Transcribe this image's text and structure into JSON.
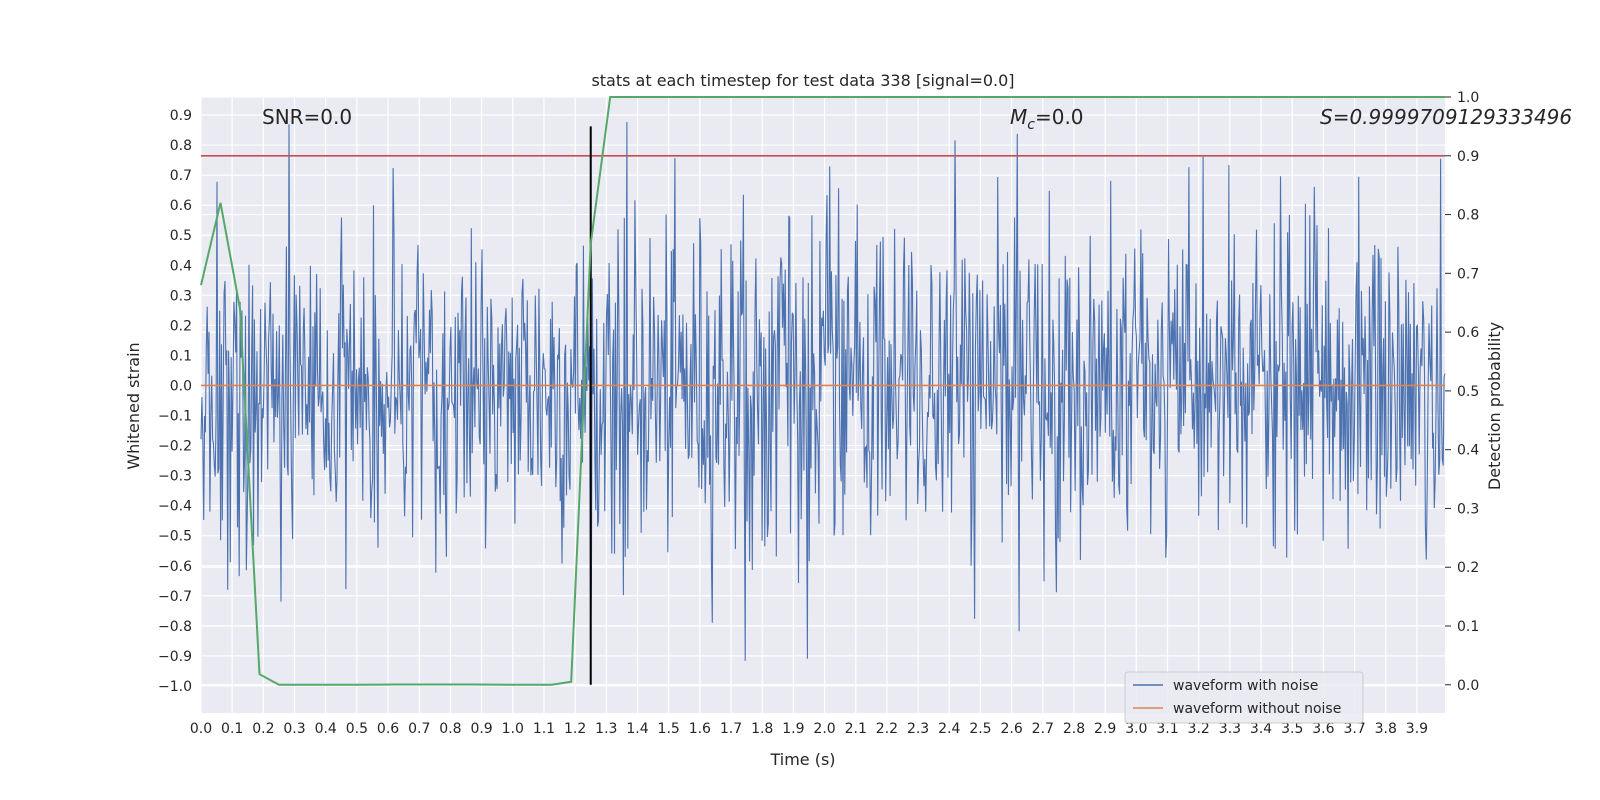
{
  "colors": {
    "background": "#eaeaf2",
    "grid": "#ffffff",
    "noisy": "#4c72b0",
    "clean": "#dd8452",
    "probability": "#55a868",
    "threshold": "#c44e52",
    "marker": "#000000",
    "text": "#262626"
  },
  "chart_data": {
    "type": "line",
    "title": "stats at each timestep for test data 338 [signal=0.0]",
    "xlabel": "Time (s)",
    "ylabel": "Whitened strain",
    "y2label": "Detection probability",
    "xlim": [
      0.0,
      3.99
    ],
    "ylim": [
      -1.09,
      0.96
    ],
    "y2lim": [
      -0.048,
      1.0
    ],
    "grid": true,
    "legend_position": "lower-right",
    "x_ticks": [
      0.0,
      0.1,
      0.2,
      0.3,
      0.4,
      0.5,
      0.6,
      0.7,
      0.8,
      0.9,
      1.0,
      1.1,
      1.2,
      1.3,
      1.4,
      1.5,
      1.6,
      1.7,
      1.8,
      1.9,
      2.0,
      2.1,
      2.2,
      2.3,
      2.4,
      2.5,
      2.6,
      2.7,
      2.8,
      2.9,
      3.0,
      3.1,
      3.2,
      3.3,
      3.4,
      3.5,
      3.6,
      3.7,
      3.8,
      3.9
    ],
    "x_tick_labels": [
      "0.0",
      "0.1",
      "0.2",
      "0.3",
      "0.4",
      "0.5",
      "0.6",
      "0.7",
      "0.8",
      "0.9",
      "1.0",
      "1.1",
      "1.2",
      "1.3",
      "1.4",
      "1.5",
      "1.6",
      "1.7",
      "1.8",
      "1.9",
      "2.0",
      "2.1",
      "2.2",
      "2.3",
      "2.4",
      "2.5",
      "2.6",
      "2.7",
      "2.8",
      "2.9",
      "3.0",
      "3.1",
      "3.2",
      "3.3",
      "3.4",
      "3.5",
      "3.6",
      "3.7",
      "3.8",
      "3.9"
    ],
    "y_ticks": [
      0.9,
      0.8,
      0.7,
      0.6,
      0.5,
      0.4,
      0.3,
      0.2,
      0.1,
      0.0,
      -0.1,
      -0.2,
      -0.3,
      -0.4,
      -0.5,
      -0.6,
      -0.7,
      -0.8,
      -0.9,
      -1.0
    ],
    "y_tick_labels": [
      "0.9",
      "0.8",
      "0.7",
      "0.6",
      "0.5",
      "0.4",
      "0.3",
      "0.2",
      "0.1",
      "0.0",
      "−0.1",
      "−0.2",
      "−0.3",
      "−0.4",
      "−0.5",
      "−0.6",
      "−0.7",
      "−0.8",
      "−0.9",
      "−1.0"
    ],
    "y2_ticks": [
      1.0,
      0.9,
      0.8,
      0.7,
      0.6,
      0.5,
      0.4,
      0.3,
      0.2,
      0.1,
      0.0
    ],
    "y2_tick_labels": [
      "1.0",
      "0.9",
      "0.8",
      "0.7",
      "0.6",
      "0.5",
      "0.4",
      "0.3",
      "0.2",
      "0.1",
      "0.0"
    ],
    "annotations": {
      "snr": "SNR=0.0",
      "mc_symbol": "M",
      "mc_subscript": "c",
      "mc_value": "=0.0",
      "s": "S=0.9999709129333496"
    },
    "series": [
      {
        "name": "waveform with noise",
        "axis": "left",
        "kind": "noise",
        "sample_count": 1400,
        "seed": 338,
        "typical_range": [
          -0.6,
          0.6
        ],
        "peak_range": [
          -0.92,
          0.88
        ]
      },
      {
        "name": "waveform without noise",
        "axis": "left",
        "x": [
          0.0,
          3.99
        ],
        "y": [
          0.0,
          0.0
        ]
      },
      {
        "axis": "right",
        "x": [
          0.0,
          0.0625,
          0.125,
          0.1875,
          0.25,
          0.3125,
          0.375,
          0.5,
          0.625,
          0.75,
          0.875,
          1.0,
          1.125,
          1.1875,
          1.25,
          1.3125,
          1.375,
          1.5,
          2.0,
          2.5,
          3.0,
          3.5,
          3.99
        ],
        "y": [
          0.68,
          0.82,
          0.64,
          0.018,
          0.0,
          0.0,
          0.0,
          0.0,
          0.0005,
          0.0005,
          0.0005,
          0.0,
          0.0,
          0.005,
          0.75,
          1.0,
          1.0,
          1.0,
          1.0,
          1.0,
          1.0,
          1.0,
          1.0
        ]
      },
      {
        "axis": "right",
        "kind": "threshold",
        "y": 0.9
      }
    ],
    "vline_x": 1.25
  }
}
